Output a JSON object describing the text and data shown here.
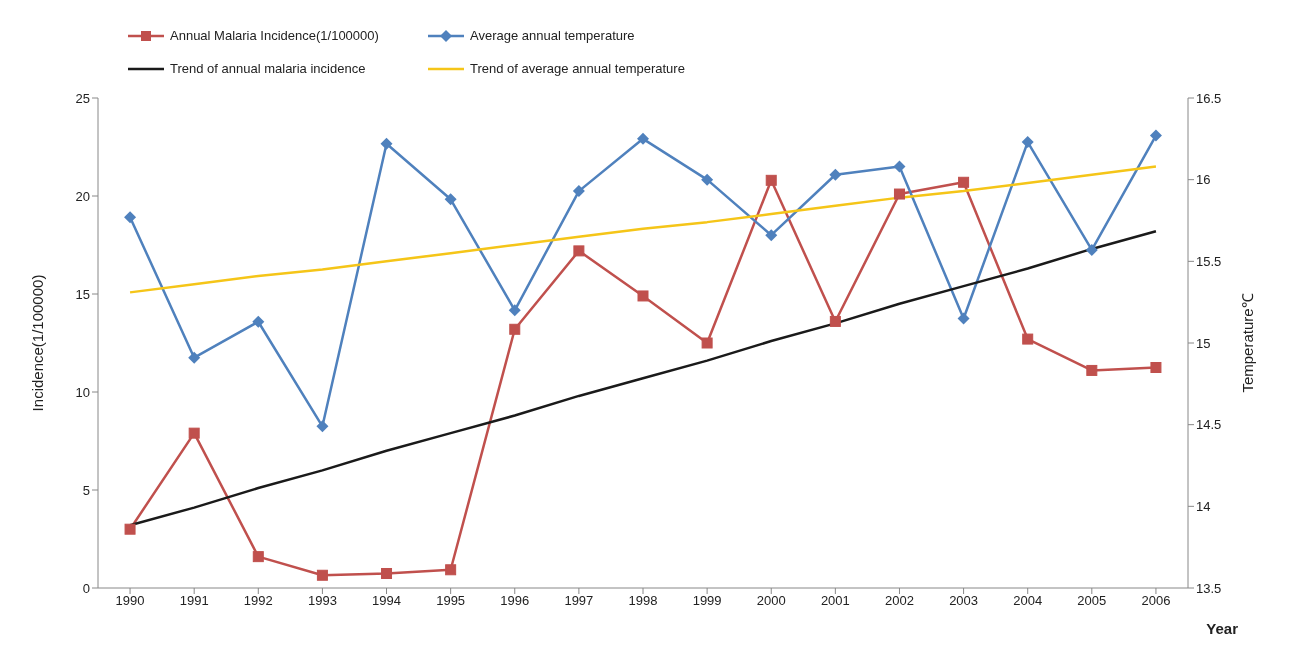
{
  "chart_data": {
    "type": "line",
    "xlabel": "Year",
    "ylabel": "Incidence(1/100000)",
    "y2label": "Temperature℃",
    "categories": [
      "1990",
      "1991",
      "1992",
      "1993",
      "1994",
      "1995",
      "1996",
      "1997",
      "1998",
      "1999",
      "2000",
      "2001",
      "2002",
      "2003",
      "2004",
      "2005",
      "2006"
    ],
    "series": [
      {
        "name": "Annual Malaria  Incidence(1/100000)",
        "color": "#c0504d",
        "marker": "square",
        "values": [
          3.0,
          7.9,
          1.6,
          0.65,
          0.74,
          0.93,
          13.2,
          17.2,
          14.9,
          12.5,
          20.8,
          13.6,
          20.1,
          20.7,
          12.7,
          11.1,
          11.25
        ]
      },
      {
        "name": "Average annual temperature",
        "color": "#4f81bd",
        "marker": "diamond",
        "axis": "y2",
        "values": [
          15.77,
          14.91,
          15.13,
          14.49,
          16.22,
          15.88,
          15.2,
          15.93,
          16.25,
          16.0,
          15.66,
          16.03,
          16.08,
          15.15,
          16.23,
          15.57,
          16.27
        ]
      },
      {
        "name": "Trend of annual malaria incidence",
        "color": "#1a1a1a",
        "marker": "none",
        "values": [
          3.2,
          4.1,
          5.1,
          6.0,
          7.0,
          7.9,
          8.8,
          9.8,
          10.7,
          11.6,
          12.6,
          13.5,
          14.5,
          15.4,
          16.3,
          17.3,
          18.2
        ]
      },
      {
        "name": "Trend of average annual temperature",
        "color": "#f5c518",
        "marker": "none",
        "axis": "y2",
        "values": [
          15.31,
          15.36,
          15.41,
          15.45,
          15.5,
          15.55,
          15.6,
          15.65,
          15.7,
          15.74,
          15.79,
          15.84,
          15.89,
          15.93,
          15.98,
          16.03,
          16.08
        ]
      }
    ],
    "ylim": [
      0,
      25
    ],
    "yticks": [
      0,
      5,
      10,
      15,
      20,
      25
    ],
    "y2lim": [
      13.5,
      16.5
    ],
    "y2ticks": [
      13.5,
      14,
      14.5,
      15,
      15.5,
      16,
      16.5
    ],
    "legend": "top",
    "grid": false,
    "line_style": "solid"
  }
}
